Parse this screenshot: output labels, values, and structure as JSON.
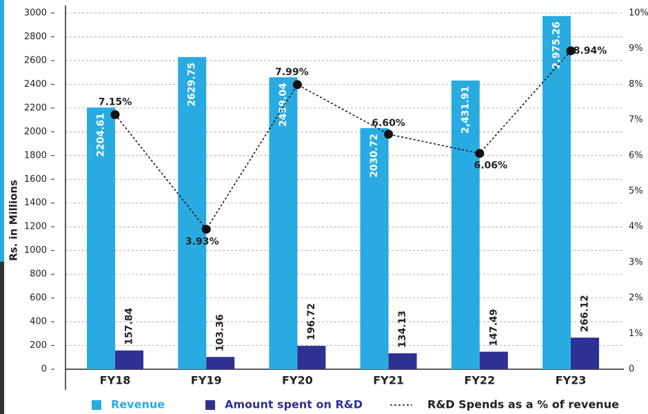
{
  "chart_data": {
    "type": "bar",
    "y_label": "Rs. in Millions",
    "categories": [
      "FY18",
      "FY19",
      "FY20",
      "FY21",
      "FY22",
      "FY23"
    ],
    "series": [
      {
        "name": "Revenue",
        "color": "#29abe2",
        "type": "bar",
        "values": [
          2204.61,
          2629.75,
          2459.04,
          2030.72,
          2431.91,
          2975.26
        ],
        "value_labels": [
          "2204.61",
          "2629.75",
          "2459.04",
          "2030.72",
          "2,431.91",
          "2,975.26"
        ]
      },
      {
        "name": "Amount spent on R&D",
        "color": "#2e3192",
        "type": "bar",
        "values": [
          157.84,
          103.36,
          196.72,
          134.13,
          147.49,
          266.12
        ]
      },
      {
        "name": "R&D Spends as a % of revenue",
        "color": "#111111",
        "type": "line",
        "axis": "y2",
        "values": [
          7.15,
          3.93,
          7.99,
          6.6,
          6.06,
          8.94
        ],
        "value_labels": [
          "7.15%",
          "3.93%",
          "7.99%",
          "6.60%",
          "6.06%",
          "8.94%"
        ]
      }
    ],
    "ylim": [
      0,
      3000
    ],
    "yticks": [
      0,
      200,
      400,
      600,
      800,
      1000,
      1200,
      1400,
      1600,
      1800,
      2000,
      2200,
      2400,
      2600,
      2800,
      3000
    ],
    "y2lim": [
      0,
      10
    ],
    "y2ticks": [
      0,
      {
        "value": 1,
        "label": "1%"
      },
      {
        "value": 2,
        "label": "2%"
      },
      {
        "value": 3,
        "label": "3%"
      },
      {
        "value": 4,
        "label": "4%"
      },
      {
        "value": 5,
        "label": "5%"
      },
      {
        "value": 6,
        "label": "6%"
      },
      {
        "value": 7,
        "label": "7%"
      },
      {
        "value": 8,
        "label": "8%"
      },
      {
        "value": 9,
        "label": "9%"
      },
      {
        "value": 10,
        "label": "10%"
      }
    ],
    "grid": true,
    "legend": "bottom"
  }
}
